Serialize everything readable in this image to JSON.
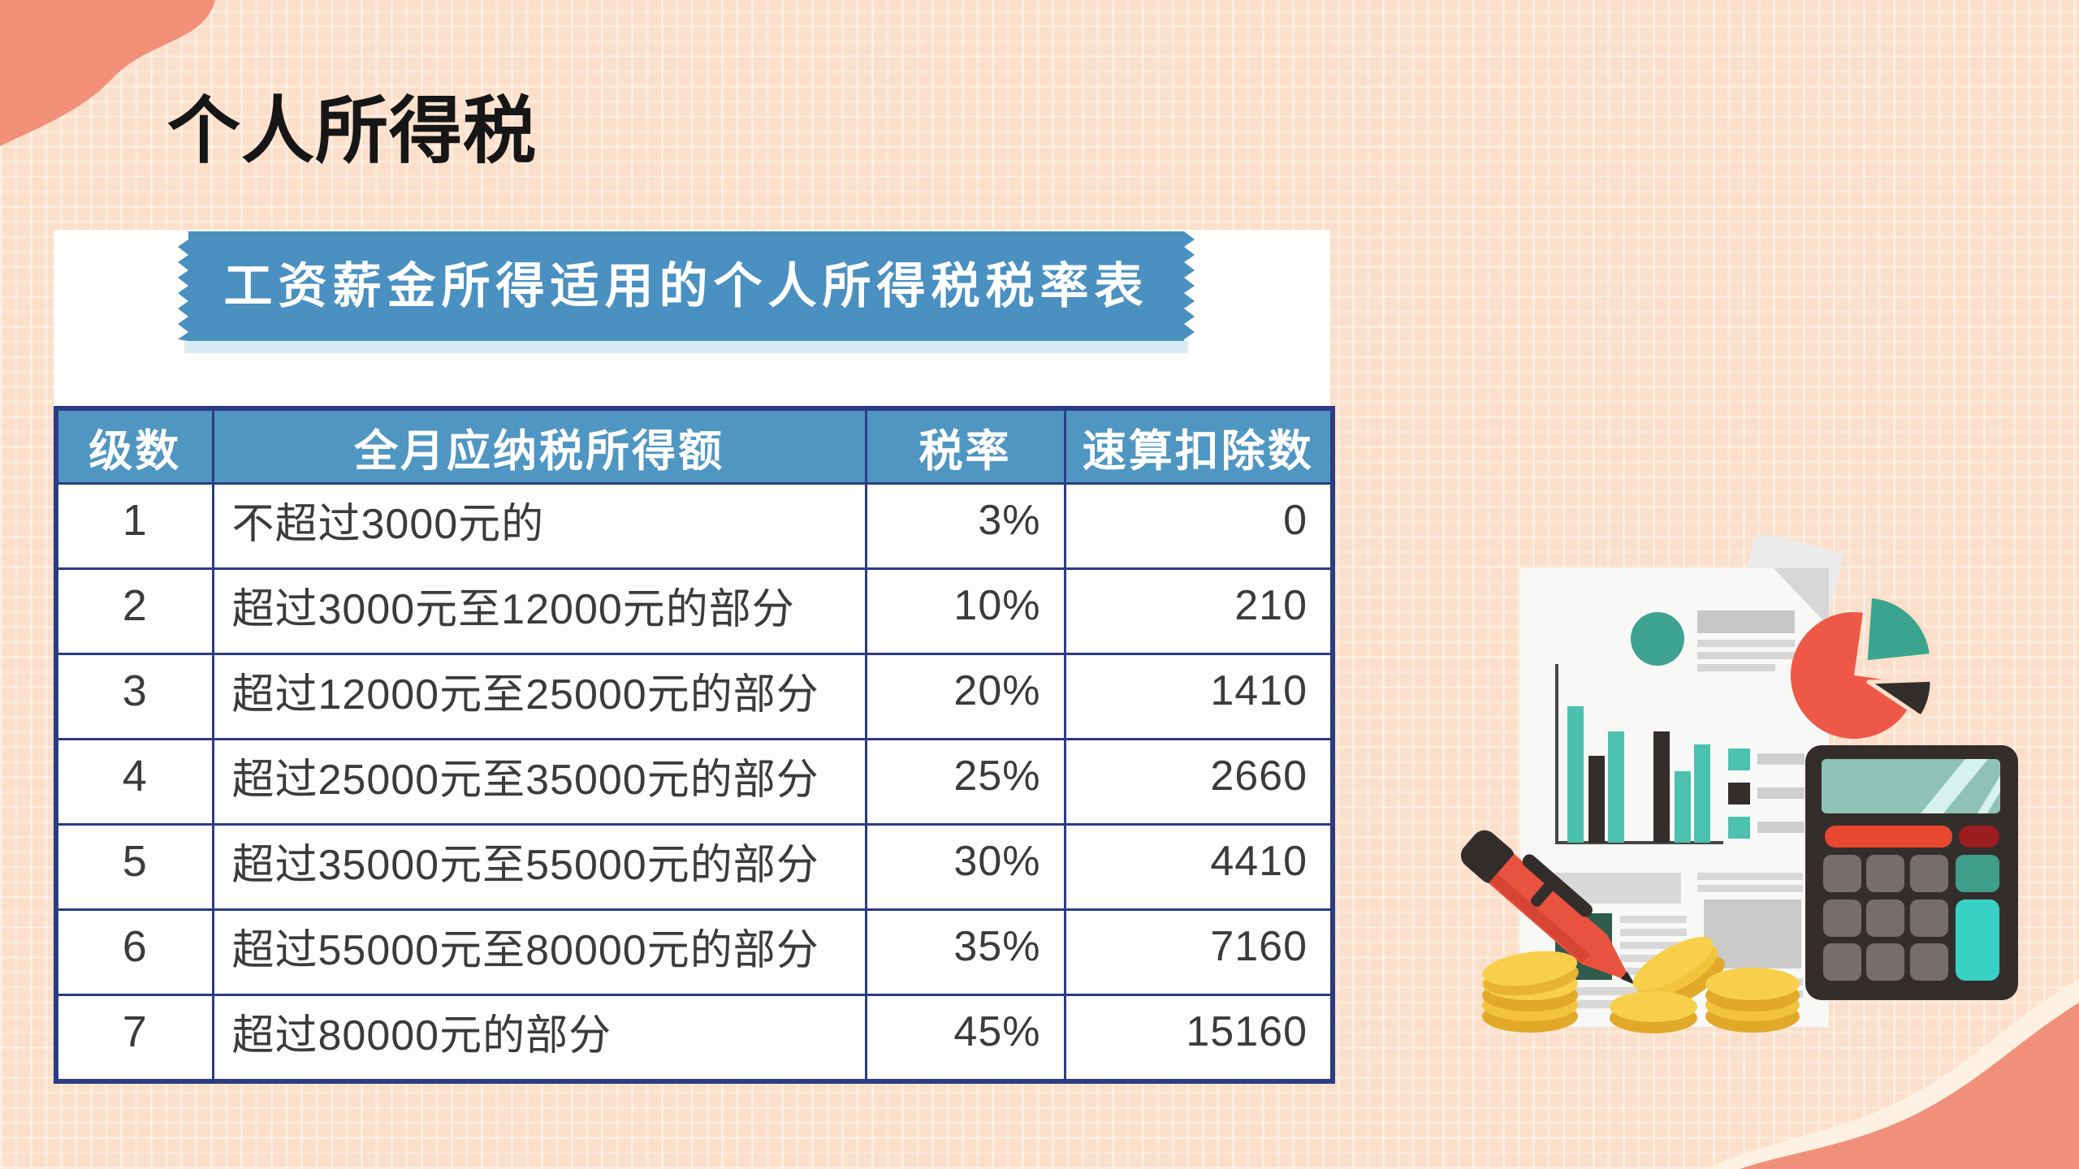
{
  "page": {
    "title": "个人所得税"
  },
  "banner": {
    "title": "工资薪金所得适用的个人所得税税率表"
  },
  "table": {
    "headers": [
      "级数",
      "全月应纳税所得额",
      "税率",
      "速算扣除数"
    ],
    "rows": [
      [
        "1",
        "不超过3000元的",
        "3%",
        "0"
      ],
      [
        "2",
        "超过3000元至12000元的部分",
        "10%",
        "210"
      ],
      [
        "3",
        "超过12000元至25000元的部分",
        "20%",
        "1410"
      ],
      [
        "4",
        "超过25000元至35000元的部分",
        "25%",
        "2660"
      ],
      [
        "5",
        "超过35000元至55000元的部分",
        "30%",
        "4410"
      ],
      [
        "6",
        "超过55000元至80000元的部分",
        "35%",
        "7160"
      ],
      [
        "7",
        "超过80000元的部分",
        "45%",
        "15160"
      ]
    ]
  },
  "illustration": {
    "items": [
      "financial-report-document",
      "bar-chart",
      "pie-chart",
      "calculator",
      "red-pen",
      "gold-coins"
    ]
  },
  "colors": {
    "background": "#fbdfca",
    "corner_accent": "#f2907a",
    "banner_blue": "#4a90c0",
    "header_blue": "#5096c2",
    "table_border": "#2c3c82",
    "cell_text": "#3b3b3b",
    "teal": "#3ea390",
    "red": "#ee5847",
    "dark": "#332e2c",
    "gold": "#f7cf4a"
  }
}
